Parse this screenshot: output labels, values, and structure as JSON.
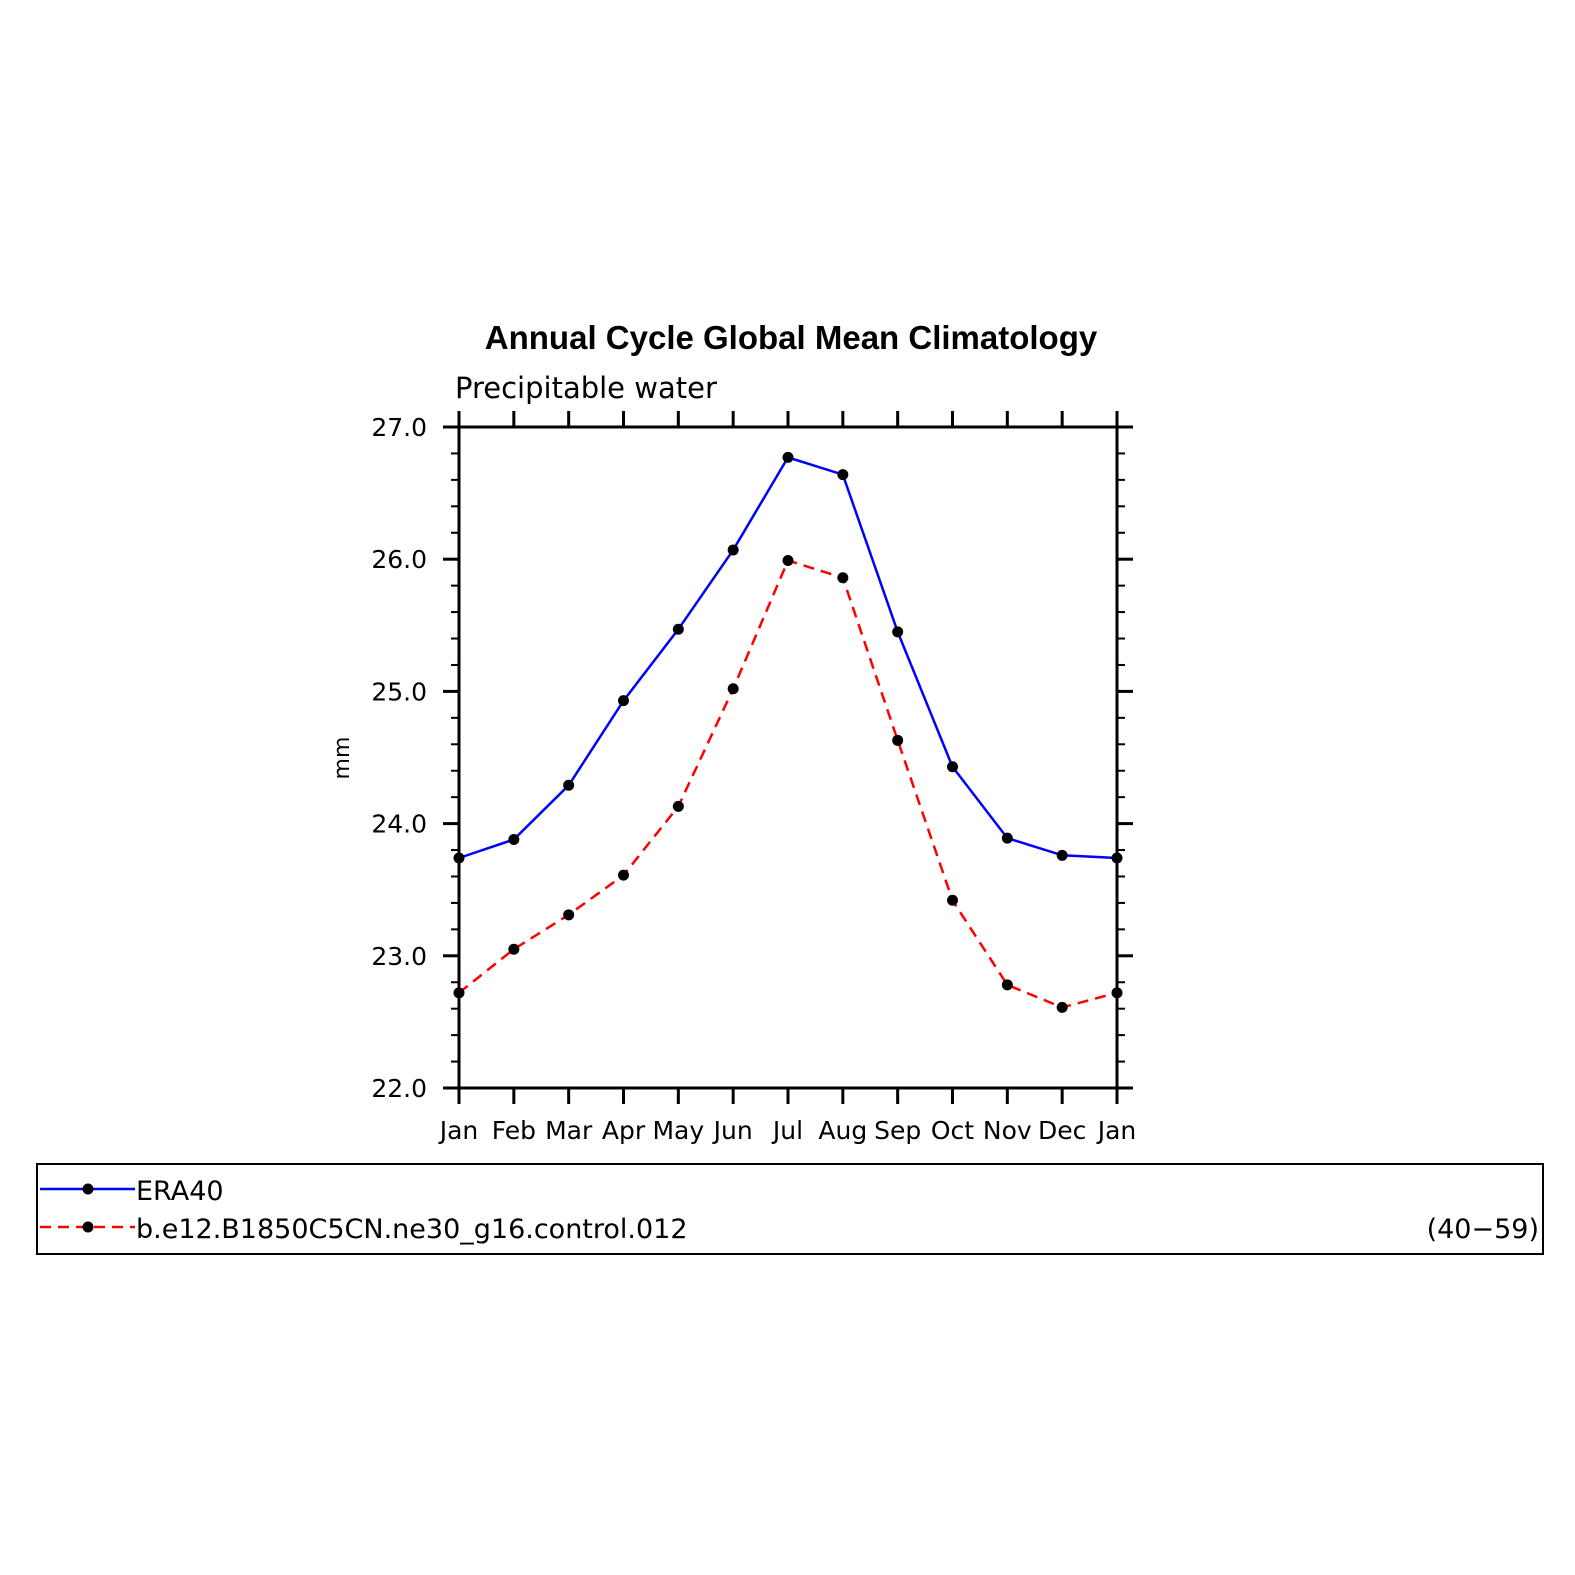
{
  "chart_data": {
    "type": "line",
    "title": "Annual Cycle Global Mean Climatology",
    "subtitle": "Precipitable water",
    "xlabel": "",
    "ylabel": "mm",
    "categories": [
      "Jan",
      "Feb",
      "Mar",
      "Apr",
      "May",
      "Jun",
      "Jul",
      "Aug",
      "Sep",
      "Oct",
      "Nov",
      "Dec",
      "Jan"
    ],
    "ylim": [
      22.0,
      27.0
    ],
    "yticks": [
      "22.0",
      "23.0",
      "24.0",
      "25.0",
      "26.0",
      "27.0"
    ],
    "grid": false,
    "legend_position": "bottom",
    "series": [
      {
        "name": "ERA40",
        "color": "#0000ff",
        "dash": "solid",
        "values": [
          23.74,
          23.88,
          24.29,
          24.93,
          25.47,
          26.07,
          26.77,
          26.64,
          25.45,
          24.43,
          23.89,
          23.76,
          23.74
        ]
      },
      {
        "name": "b.e12.B1850C5CN.ne30_g16.control.012",
        "color": "#ff0000",
        "dash": "dashed",
        "values": [
          22.72,
          23.05,
          23.31,
          23.61,
          24.13,
          25.02,
          25.99,
          25.86,
          24.63,
          23.42,
          22.78,
          22.61,
          22.72
        ]
      }
    ],
    "legend_note": "(40−59)"
  }
}
